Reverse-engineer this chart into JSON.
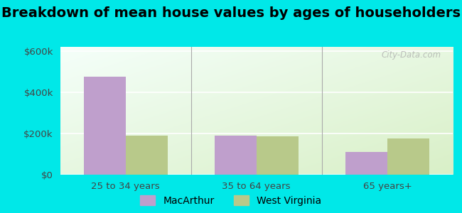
{
  "title": "Breakdown of mean house values by ages of householders",
  "categories": [
    "25 to 34 years",
    "35 to 64 years",
    "65 years+"
  ],
  "macarthur_values": [
    475000,
    190000,
    110000
  ],
  "west_virginia_values": [
    190000,
    185000,
    175000
  ],
  "macarthur_color": "#bf9fcc",
  "west_virginia_color": "#b8c98a",
  "bar_width": 0.32,
  "ylim": [
    0,
    620000
  ],
  "yticks": [
    0,
    200000,
    400000,
    600000
  ],
  "ytick_labels": [
    "$0",
    "$200k",
    "$400k",
    "$600k"
  ],
  "bg_outer": "#00e8e8",
  "bg_inner_top_left": "#f5fffb",
  "bg_inner_bottom_right": "#d8efc8",
  "legend_macarthur": "MacArthur",
  "legend_west_virginia": "West Virginia",
  "title_fontsize": 14,
  "axis_fontsize": 9.5,
  "legend_fontsize": 10,
  "watermark": "City-Data.com"
}
